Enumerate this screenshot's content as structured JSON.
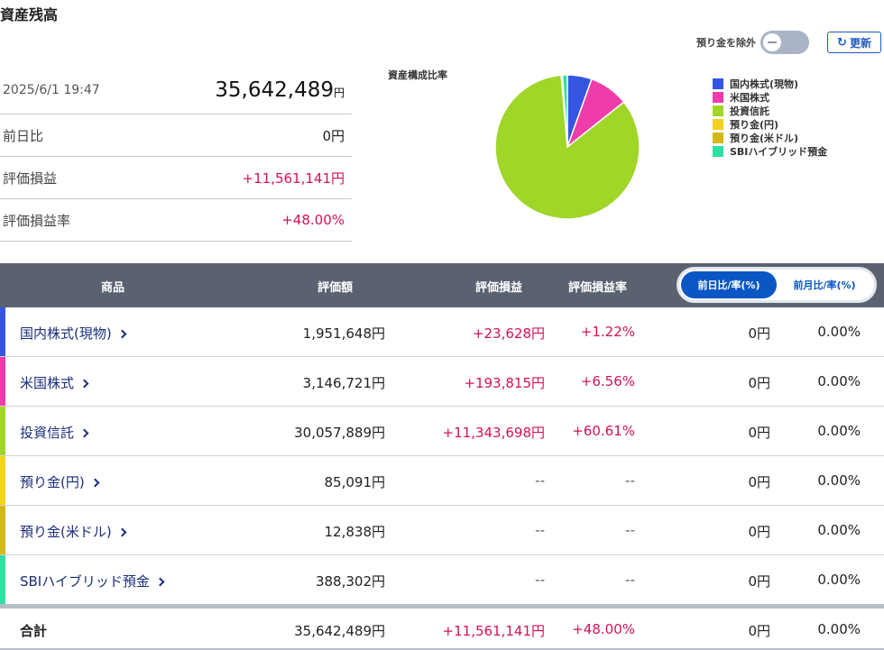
{
  "page_title": "資産残高",
  "summary": {
    "date": "2025/6/1 19:47",
    "total_value": "35,642,489",
    "total_unit": "円",
    "rows": [
      {
        "label": "前日比",
        "value": "0円"
      },
      {
        "label": "評価損益",
        "value": "+11,561,141円"
      },
      {
        "label": "評価損益率",
        "value": "+48.00%"
      }
    ]
  },
  "controls": {
    "exclude_deposit_label": "預り金を除外",
    "refresh_label": "更新"
  },
  "chart_data": {
    "type": "pie",
    "title": "資産構成比率",
    "categories": [
      "国内株式(現物)",
      "米国株式",
      "投資信託",
      "預り金(円)",
      "預り金(米ドル)",
      "SBIハイブリッド預金"
    ],
    "values": [
      1951648,
      3146721,
      30057889,
      85091,
      12838,
      388302
    ],
    "colors": [
      "#3556e0",
      "#f03cab",
      "#9fd628",
      "#f2d21a",
      "#d4b81a",
      "#2fe0a0"
    ],
    "legend": "right"
  },
  "table": {
    "headers": {
      "product": "商品",
      "valuation": "評価額",
      "pl": "評価損益",
      "pl_rate": "評価損益率"
    },
    "segment": {
      "active": "前日比/率(%)",
      "inactive": "前月比/率(%)"
    },
    "rows": [
      {
        "name": "国内株式(現物)",
        "color": "#3556e0",
        "valuation": "1,951,648円",
        "pl": "+23,628円",
        "pl_rate": "+1.22%",
        "day_change": "0円",
        "day_rate": "0.00%"
      },
      {
        "name": "米国株式",
        "color": "#f03cab",
        "valuation": "3,146,721円",
        "pl": "+193,815円",
        "pl_rate": "+6.56%",
        "day_change": "0円",
        "day_rate": "0.00%"
      },
      {
        "name": "投資信託",
        "color": "#9fd628",
        "valuation": "30,057,889円",
        "pl": "+11,343,698円",
        "pl_rate": "+60.61%",
        "day_change": "0円",
        "day_rate": "0.00%"
      },
      {
        "name": "預り金(円)",
        "color": "#f2d21a",
        "valuation": "85,091円",
        "pl": "--",
        "pl_rate": "--",
        "day_change": "0円",
        "day_rate": "0.00%"
      },
      {
        "name": "預り金(米ドル)",
        "color": "#d4b81a",
        "valuation": "12,838円",
        "pl": "--",
        "pl_rate": "--",
        "day_change": "0円",
        "day_rate": "0.00%"
      },
      {
        "name": "SBIハイブリッド預金",
        "color": "#2fe0a0",
        "valuation": "388,302円",
        "pl": "--",
        "pl_rate": "--",
        "day_change": "0円",
        "day_rate": "0.00%"
      }
    ],
    "total": {
      "name": "合計",
      "valuation": "35,642,489円",
      "pl": "+11,561,141円",
      "pl_rate": "+48.00%",
      "day_change": "0円",
      "day_rate": "0.00%"
    }
  }
}
